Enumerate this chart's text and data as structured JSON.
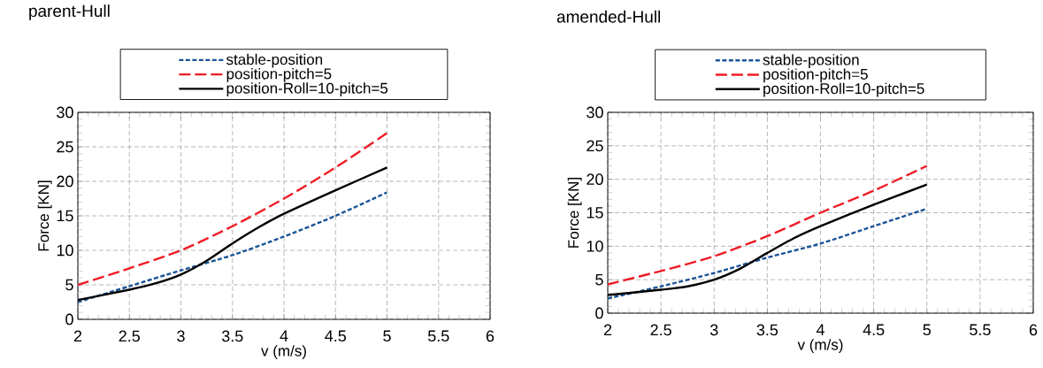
{
  "chart_data": [
    {
      "type": "line",
      "title": "parent-Hull",
      "xlabel": "v (m/s)",
      "ylabel": "Force [KN]",
      "xlim": [
        2,
        6
      ],
      "ylim": [
        0,
        30
      ],
      "xticks": [
        2,
        2.5,
        3,
        3.5,
        4,
        4.5,
        5,
        5.5,
        6
      ],
      "yticks": [
        0,
        5,
        10,
        15,
        20,
        25,
        30
      ],
      "grid": true,
      "legend": "top",
      "series": [
        {
          "name": "stable-position",
          "color": "#1a5496",
          "line_style": "dotted",
          "x": [
            2,
            2.5,
            3,
            3.5,
            4,
            4.5,
            5
          ],
          "values": [
            2.5,
            4.8,
            7.1,
            9.3,
            12,
            15,
            18.4
          ]
        },
        {
          "name": "position-pitch=5",
          "color": "#ee1c25",
          "line_style": "dashed",
          "x": [
            2,
            2.5,
            3,
            3.5,
            4,
            4.5,
            5
          ],
          "values": [
            5,
            7.4,
            10,
            13.5,
            17.5,
            22,
            27
          ]
        },
        {
          "name": "position-Roll=10-pitch=5",
          "color": "#000000",
          "line_style": "solid",
          "x": [
            2,
            2.5,
            2.75,
            3,
            3.25,
            3.5,
            3.75,
            4,
            4.5,
            5
          ],
          "values": [
            2.8,
            4.3,
            5.2,
            6.5,
            8.5,
            11,
            13.3,
            15.3,
            18.7,
            22
          ]
        }
      ]
    },
    {
      "type": "line",
      "title": "amended-Hull",
      "xlabel": "v (m/s)",
      "ylabel": "Force [KN]",
      "xlim": [
        2,
        6
      ],
      "ylim": [
        0,
        30
      ],
      "xticks": [
        2,
        2.5,
        3,
        3.5,
        4,
        4.5,
        5,
        5.5,
        6
      ],
      "yticks": [
        0,
        5,
        10,
        15,
        20,
        25,
        30
      ],
      "grid": true,
      "legend": "top",
      "series": [
        {
          "name": "stable-position",
          "color": "#1a5496",
          "line_style": "dotted",
          "x": [
            2,
            2.5,
            3,
            3.5,
            4,
            4.5,
            5
          ],
          "values": [
            2.2,
            4.0,
            6.0,
            8.3,
            10.4,
            13,
            15.6
          ]
        },
        {
          "name": "position-pitch=5",
          "color": "#ee1c25",
          "line_style": "dashed",
          "x": [
            2,
            2.5,
            3,
            3.5,
            4,
            4.5,
            5
          ],
          "values": [
            4.3,
            6.3,
            8.5,
            11.5,
            15,
            18.3,
            22
          ]
        },
        {
          "name": "position-Roll=10-pitch=5",
          "color": "#000000",
          "line_style": "solid",
          "x": [
            2,
            2.5,
            2.75,
            3,
            3.25,
            3.5,
            3.75,
            4,
            4.5,
            5
          ],
          "values": [
            2.7,
            3.5,
            4.0,
            5.0,
            6.7,
            9,
            11.2,
            13,
            16.2,
            19.2
          ]
        }
      ]
    }
  ]
}
